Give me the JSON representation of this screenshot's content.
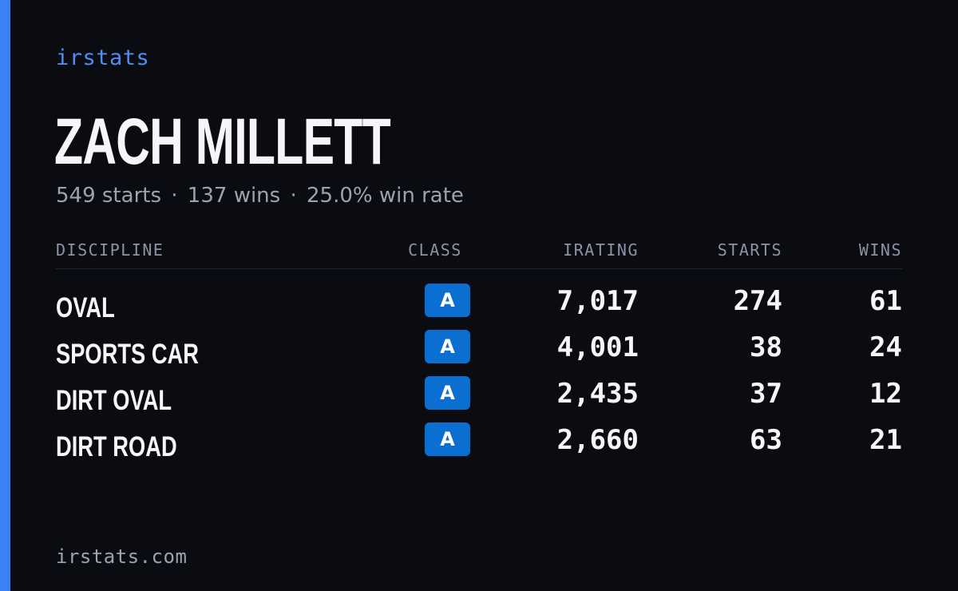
{
  "colors": {
    "background": "#0a0c12",
    "accent": "#3b82f6",
    "brand_text": "#4f8df5",
    "class_badge": "#0b6fd1",
    "muted_text": "#9aa3b2"
  },
  "brand": "irstats",
  "player": {
    "name": "ZACH MILLETT"
  },
  "summary": {
    "starts": "549 starts",
    "wins": "137 wins",
    "win_rate": "25.0% win rate",
    "separator": "·"
  },
  "table": {
    "headers": {
      "discipline": "DISCIPLINE",
      "class": "CLASS",
      "irating": "IRATING",
      "starts": "STARTS",
      "wins": "WINS"
    },
    "rows": [
      {
        "discipline": "OVAL",
        "class": "A",
        "irating": "7,017",
        "starts": "274",
        "wins": "61"
      },
      {
        "discipline": "SPORTS CAR",
        "class": "A",
        "irating": "4,001",
        "starts": "38",
        "wins": "24"
      },
      {
        "discipline": "DIRT OVAL",
        "class": "A",
        "irating": "2,435",
        "starts": "37",
        "wins": "12"
      },
      {
        "discipline": "DIRT ROAD",
        "class": "A",
        "irating": "2,660",
        "starts": "63",
        "wins": "21"
      }
    ]
  },
  "footer": "irstats.com"
}
